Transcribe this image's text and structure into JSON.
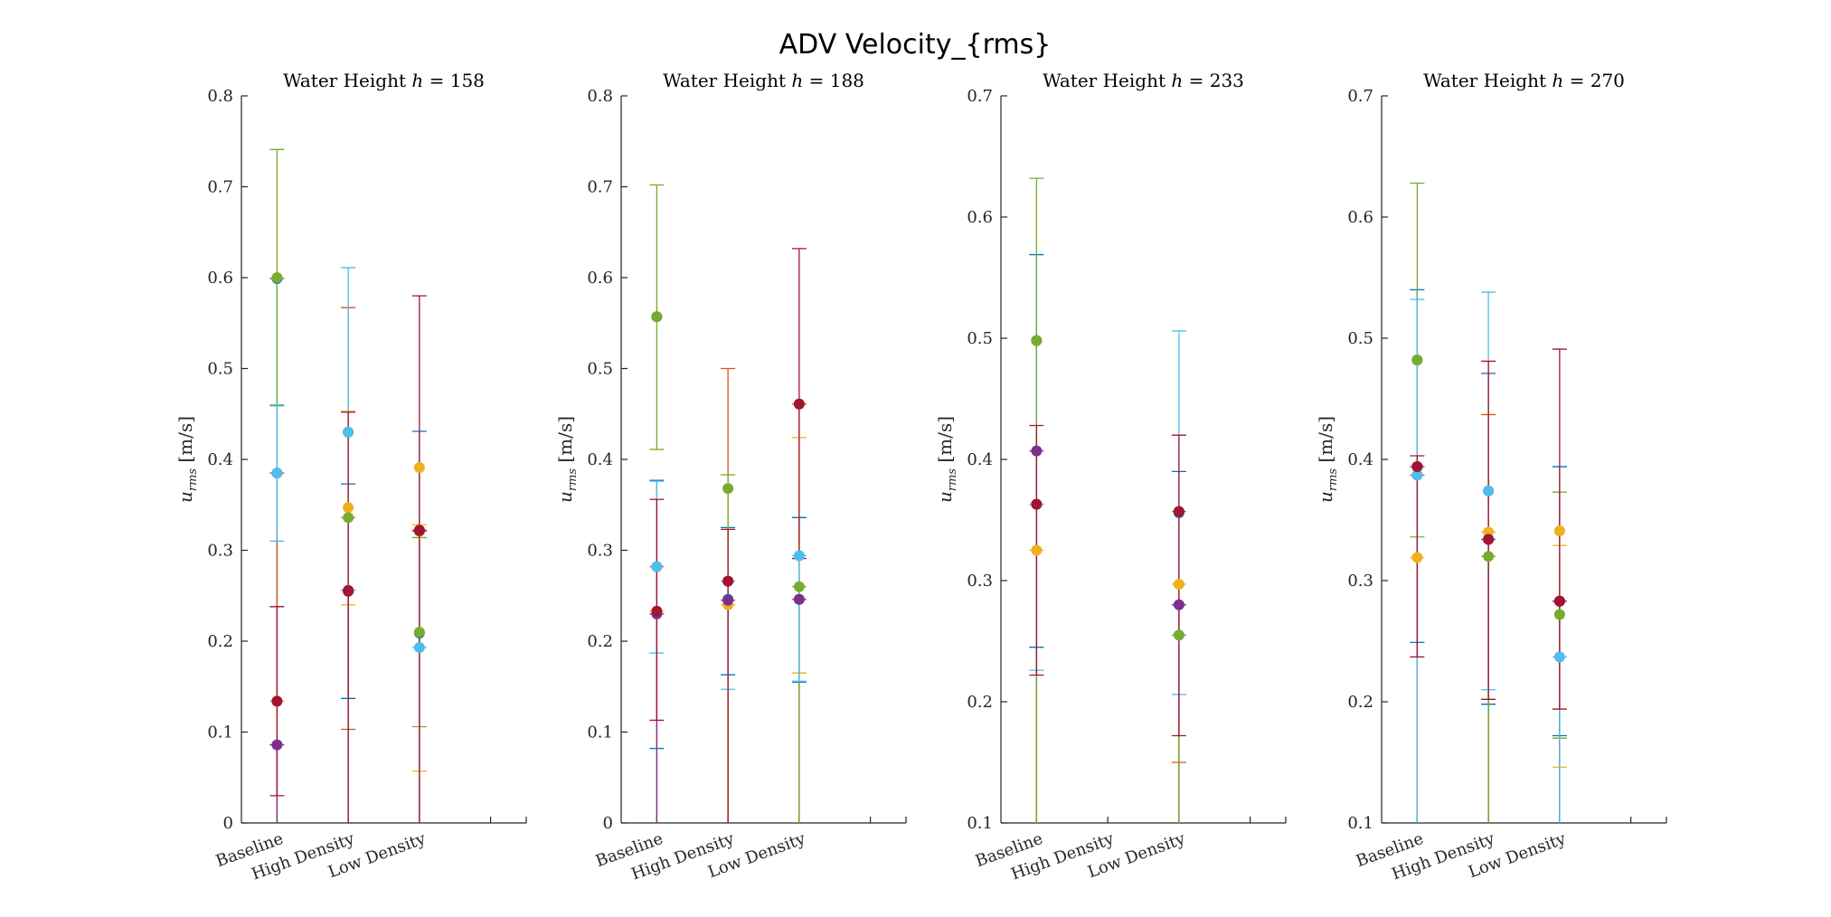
{
  "figure_title": "ADV Velocity_{rms}",
  "colors": {
    "blue": "#0072BD",
    "orange": "#D95319",
    "yellow": "#EDB120",
    "purple": "#7E2F8E",
    "green": "#77AC30",
    "cyan": "#4DBEEE",
    "red": "#A2142F"
  },
  "chart_data": [
    {
      "type": "scatter",
      "title_prefix": "Water Height",
      "title_var": "h",
      "title_value": "158",
      "ylabel_symbol": "u",
      "ylabel_sub": "rms",
      "ylabel_unit": "[m/s]",
      "categories": [
        "Baseline",
        "High Density",
        "Low Density"
      ],
      "ylim": [
        0,
        0.8
      ],
      "yticks": [
        0,
        0.1,
        0.2,
        0.3,
        0.4,
        0.5,
        0.6,
        0.7,
        0.8
      ],
      "ytick_labels": [
        "0",
        "0.1",
        "0.2",
        "0.3",
        "0.4",
        "0.5",
        "0.6",
        "0.7",
        "0.8"
      ],
      "series": [
        {
          "color": "blue",
          "points": [
            {
              "cat": 0,
              "y": 0.599,
              "lo": 0.0,
              "hi": 0.599
            },
            {
              "cat": 1,
              "y": 0.255,
              "lo": 0.137,
              "hi": 0.373
            },
            {
              "cat": 2,
              "y": 0.209,
              "lo": 0.0,
              "hi": 0.431
            }
          ]
        },
        {
          "color": "orange",
          "points": [
            {
              "cat": 0,
              "y": 0.385,
              "lo": 0.0,
              "hi": 0.385
            },
            {
              "cat": 1,
              "y": 0.43,
              "lo": 0.103,
              "hi": 0.567
            },
            {
              "cat": 2,
              "y": 0.321,
              "lo": 0.0,
              "hi": 0.321
            }
          ]
        },
        {
          "color": "yellow",
          "points": [
            {
              "cat": 0,
              "y": 0.134,
              "lo": 0.0,
              "hi": 0.134
            },
            {
              "cat": 1,
              "y": 0.347,
              "lo": 0.24,
              "hi": 0.453
            },
            {
              "cat": 2,
              "y": 0.391,
              "lo": 0.057,
              "hi": 0.328
            }
          ]
        },
        {
          "color": "purple",
          "points": [
            {
              "cat": 0,
              "y": 0.086,
              "lo": 0.0,
              "hi": 0.086
            },
            {
              "cat": 1,
              "y": 0.256,
              "lo": 0.0,
              "hi": 0.256
            },
            {
              "cat": 2,
              "y": 0.322,
              "lo": 0.0,
              "hi": 0.322
            }
          ]
        },
        {
          "color": "green",
          "points": [
            {
              "cat": 0,
              "y": 0.6,
              "lo": 0.459,
              "hi": 0.741
            },
            {
              "cat": 1,
              "y": 0.336,
              "lo": 0.0,
              "hi": 0.336
            },
            {
              "cat": 2,
              "y": 0.21,
              "lo": 0.106,
              "hi": 0.314
            }
          ]
        },
        {
          "color": "cyan",
          "points": [
            {
              "cat": 0,
              "y": 0.385,
              "lo": 0.31,
              "hi": 0.46
            },
            {
              "cat": 1,
              "y": 0.43,
              "lo": 0.256,
              "hi": 0.611
            },
            {
              "cat": 2,
              "y": 0.193,
              "lo": 0.0,
              "hi": 0.193
            }
          ]
        },
        {
          "color": "red",
          "points": [
            {
              "cat": 0,
              "y": 0.134,
              "lo": 0.03,
              "hi": 0.238
            },
            {
              "cat": 1,
              "y": 0.255,
              "lo": 0.0,
              "hi": 0.452
            },
            {
              "cat": 2,
              "y": 0.322,
              "lo": 0.0,
              "hi": 0.58
            }
          ]
        }
      ]
    },
    {
      "type": "scatter",
      "title_prefix": "Water Height",
      "title_var": "h",
      "title_value": "188",
      "ylabel_symbol": "u",
      "ylabel_sub": "rms",
      "ylabel_unit": "[m/s]",
      "categories": [
        "Baseline",
        "High Density",
        "Low Density"
      ],
      "ylim": [
        0,
        0.8
      ],
      "yticks": [
        0,
        0.1,
        0.2,
        0.3,
        0.4,
        0.5,
        0.6,
        0.7,
        0.8
      ],
      "ytick_labels": [
        "0",
        "0.1",
        "0.2",
        "0.3",
        "0.4",
        "0.5",
        "0.6",
        "0.7",
        "0.8"
      ],
      "series": [
        {
          "color": "blue",
          "points": [
            {
              "cat": 0,
              "y": 0.557,
              "lo": 0.082,
              "hi": 0.377
            },
            {
              "cat": 1,
              "y": 0.246,
              "lo": 0.163,
              "hi": 0.325
            },
            {
              "cat": 2,
              "y": 0.246,
              "lo": 0.155,
              "hi": 0.336
            }
          ]
        },
        {
          "color": "orange",
          "points": [
            {
              "cat": 0,
              "y": 0.282,
              "lo": 0.0,
              "hi": 0.282
            },
            {
              "cat": 1,
              "y": 0.266,
              "lo": 0.0,
              "hi": 0.5
            },
            {
              "cat": 2,
              "y": 0.461,
              "lo": 0.0,
              "hi": 0.461
            }
          ]
        },
        {
          "color": "yellow",
          "points": [
            {
              "cat": 0,
              "y": 0.233,
              "lo": 0.0,
              "hi": 0.233
            },
            {
              "cat": 1,
              "y": 0.24,
              "lo": 0.0,
              "hi": 0.24
            },
            {
              "cat": 2,
              "y": 0.461,
              "lo": 0.165,
              "hi": 0.424
            }
          ]
        },
        {
          "color": "purple",
          "points": [
            {
              "cat": 0,
              "y": 0.23,
              "lo": 0.0,
              "hi": 0.23
            },
            {
              "cat": 1,
              "y": 0.245,
              "lo": 0.0,
              "hi": 0.245
            },
            {
              "cat": 2,
              "y": 0.246,
              "lo": 0.0,
              "hi": 0.246
            }
          ]
        },
        {
          "color": "green",
          "points": [
            {
              "cat": 0,
              "y": 0.557,
              "lo": 0.411,
              "hi": 0.702
            },
            {
              "cat": 1,
              "y": 0.368,
              "lo": 0.0,
              "hi": 0.383
            },
            {
              "cat": 2,
              "y": 0.26,
              "lo": 0.0,
              "hi": 0.26
            }
          ]
        },
        {
          "color": "cyan",
          "points": [
            {
              "cat": 0,
              "y": 0.282,
              "lo": 0.187,
              "hi": 0.376
            },
            {
              "cat": 1,
              "y": 0.266,
              "lo": 0.147,
              "hi": 0.266
            },
            {
              "cat": 2,
              "y": 0.294,
              "lo": 0.156,
              "hi": 0.294
            }
          ]
        },
        {
          "color": "red",
          "points": [
            {
              "cat": 0,
              "y": 0.233,
              "lo": 0.113,
              "hi": 0.356
            },
            {
              "cat": 1,
              "y": 0.266,
              "lo": 0.0,
              "hi": 0.323
            },
            {
              "cat": 2,
              "y": 0.461,
              "lo": 0.291,
              "hi": 0.632
            }
          ]
        }
      ]
    },
    {
      "type": "scatter",
      "title_prefix": "Water Height",
      "title_var": "h",
      "title_value": "233",
      "ylabel_symbol": "u",
      "ylabel_sub": "rms",
      "ylabel_unit": "[m/s]",
      "categories": [
        "Baseline",
        "High Density",
        "Low Density"
      ],
      "ylim": [
        0.1,
        0.7
      ],
      "yticks": [
        0.1,
        0.2,
        0.3,
        0.4,
        0.5,
        0.6,
        0.7
      ],
      "ytick_labels": [
        "0.1",
        "0.2",
        "0.3",
        "0.4",
        "0.5",
        "0.6",
        "0.7"
      ],
      "series": [
        {
          "color": "blue",
          "points": [
            {
              "cat": 0,
              "y": 0.498,
              "lo": 0.245,
              "hi": 0.569
            },
            {
              "cat": 2,
              "y": 0.356,
              "lo": 0.0,
              "hi": 0.39
            }
          ]
        },
        {
          "color": "orange",
          "points": [
            {
              "cat": 0,
              "y": 0.363,
              "lo": 0.0,
              "hi": 0.363
            },
            {
              "cat": 2,
              "y": 0.357,
              "lo": 0.15,
              "hi": 0.357
            }
          ]
        },
        {
          "color": "yellow",
          "points": [
            {
              "cat": 0,
              "y": 0.325,
              "lo": 0.0,
              "hi": 0.325
            },
            {
              "cat": 2,
              "y": 0.297,
              "lo": 0.0,
              "hi": 0.297
            }
          ]
        },
        {
          "color": "purple",
          "points": [
            {
              "cat": 0,
              "y": 0.407,
              "lo": 0.0,
              "hi": 0.407
            },
            {
              "cat": 2,
              "y": 0.28,
              "lo": 0.0,
              "hi": 0.28
            }
          ]
        },
        {
          "color": "green",
          "points": [
            {
              "cat": 0,
              "y": 0.498,
              "lo": 0.0,
              "hi": 0.632
            },
            {
              "cat": 2,
              "y": 0.255,
              "lo": 0.0,
              "hi": 0.255
            }
          ]
        },
        {
          "color": "cyan",
          "points": [
            {
              "cat": 0,
              "y": 0.363,
              "lo": 0.226,
              "hi": 0.363
            },
            {
              "cat": 2,
              "y": 0.357,
              "lo": 0.206,
              "hi": 0.506
            }
          ]
        },
        {
          "color": "red",
          "points": [
            {
              "cat": 0,
              "y": 0.363,
              "lo": 0.222,
              "hi": 0.428
            },
            {
              "cat": 2,
              "y": 0.357,
              "lo": 0.172,
              "hi": 0.42
            }
          ]
        }
      ]
    },
    {
      "type": "scatter",
      "title_prefix": "Water Height",
      "title_var": "h",
      "title_value": "270",
      "ylabel_symbol": "u",
      "ylabel_sub": "rms",
      "ylabel_unit": "[m/s]",
      "categories": [
        "Baseline",
        "High Density",
        "Low Density"
      ],
      "ylim": [
        0.1,
        0.7
      ],
      "yticks": [
        0.1,
        0.2,
        0.3,
        0.4,
        0.5,
        0.6,
        0.7
      ],
      "ytick_labels": [
        "0.1",
        "0.2",
        "0.3",
        "0.4",
        "0.5",
        "0.6",
        "0.7"
      ],
      "series": [
        {
          "color": "blue",
          "points": [
            {
              "cat": 0,
              "y": 0.482,
              "lo": 0.249,
              "hi": 0.54
            },
            {
              "cat": 1,
              "y": 0.334,
              "lo": 0.198,
              "hi": 0.471
            },
            {
              "cat": 2,
              "y": 0.283,
              "lo": 0.172,
              "hi": 0.394
            }
          ]
        },
        {
          "color": "orange",
          "points": [
            {
              "cat": 0,
              "y": 0.387,
              "lo": 0.0,
              "hi": 0.387
            },
            {
              "cat": 1,
              "y": 0.374,
              "lo": 0.0,
              "hi": 0.437
            },
            {
              "cat": 2,
              "y": 0.283,
              "lo": 0.0,
              "hi": 0.283
            }
          ]
        },
        {
          "color": "yellow",
          "points": [
            {
              "cat": 0,
              "y": 0.319,
              "lo": 0.0,
              "hi": 0.319
            },
            {
              "cat": 1,
              "y": 0.34,
              "lo": 0.0,
              "hi": 0.34
            },
            {
              "cat": 2,
              "y": 0.341,
              "lo": 0.146,
              "hi": 0.329
            }
          ]
        },
        {
          "color": "purple",
          "points": [
            {
              "cat": 0,
              "y": 0.394,
              "lo": 0.0,
              "hi": 0.394
            },
            {
              "cat": 1,
              "y": 0.334,
              "lo": 0.0,
              "hi": 0.334
            },
            {
              "cat": 2,
              "y": 0.283,
              "lo": 0.0,
              "hi": 0.283
            }
          ]
        },
        {
          "color": "green",
          "points": [
            {
              "cat": 0,
              "y": 0.482,
              "lo": 0.336,
              "hi": 0.628
            },
            {
              "cat": 1,
              "y": 0.32,
              "lo": 0.0,
              "hi": 0.32
            },
            {
              "cat": 2,
              "y": 0.272,
              "lo": 0.17,
              "hi": 0.373
            }
          ]
        },
        {
          "color": "cyan",
          "points": [
            {
              "cat": 0,
              "y": 0.387,
              "lo": 0.0,
              "hi": 0.532
            },
            {
              "cat": 1,
              "y": 0.374,
              "lo": 0.21,
              "hi": 0.538
            },
            {
              "cat": 2,
              "y": 0.237,
              "lo": 0.0,
              "hi": 0.237
            }
          ]
        },
        {
          "color": "red",
          "points": [
            {
              "cat": 0,
              "y": 0.394,
              "lo": 0.237,
              "hi": 0.403
            },
            {
              "cat": 1,
              "y": 0.334,
              "lo": 0.202,
              "hi": 0.481
            },
            {
              "cat": 2,
              "y": 0.283,
              "lo": 0.194,
              "hi": 0.491
            }
          ]
        }
      ]
    }
  ]
}
